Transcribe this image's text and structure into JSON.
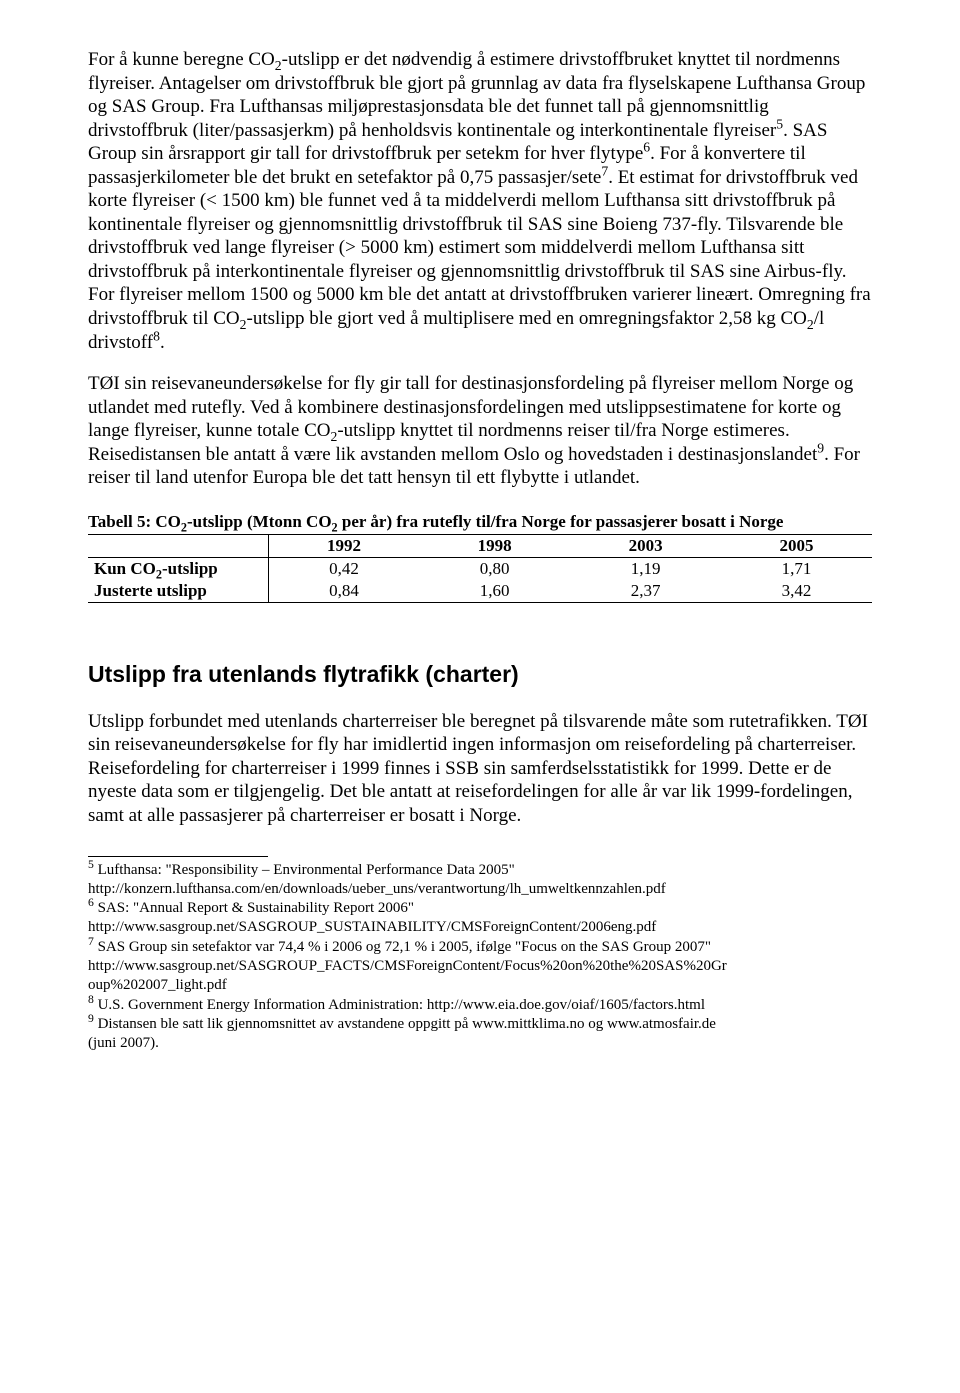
{
  "para1_html": "For å kunne beregne CO<span class=\"sub\">2</span>-utslipp er det nødvendig å estimere drivstoffbruket knyttet til nordmenns flyreiser. Antagelser om drivstoffbruk ble gjort på grunnlag av data fra flyselskapene Lufthansa Group og SAS Group. Fra Lufthansas miljøprestasjonsdata ble det funnet tall på gjennomsnittlig drivstoffbruk (liter/passasjerkm) på henholdsvis kontinentale og interkontinentale flyreiser<span class=\"sup\">5</span>. SAS Group sin årsrapport gir tall for drivstoffbruk per setekm for hver flytype<span class=\"sup\">6</span>. For å konvertere til passasjerkilometer ble det brukt en setefaktor på 0,75 passasjer/sete<span class=\"sup\">7</span>. Et estimat for drivstoffbruk ved korte flyreiser (&lt; 1500 km) ble funnet ved å ta middelverdi mellom Lufthansa sitt drivstoffbruk på kontinentale flyreiser og gjennomsnittlig drivstoffbruk til SAS sine Boieng 737-fly. Tilsvarende ble drivstoffbruk ved lange flyreiser (&gt; 5000 km) estimert som middelverdi mellom Lufthansa sitt drivstoffbruk på interkontinentale flyreiser og gjennomsnittlig drivstoffbruk til SAS sine Airbus-fly. For flyreiser mellom 1500 og 5000 km ble det antatt at drivstoffbruken varierer lineært. Omregning fra drivstoffbruk til CO<span class=\"sub\">2</span>-utslipp ble gjort ved å multiplisere med en omregningsfaktor 2,58 kg CO<span class=\"sub\">2</span>/l drivstoff<span class=\"sup\">8</span>.",
  "para2_html": "TØI sin reisevaneundersøkelse for fly gir tall for destinasjonsfordeling på flyreiser mellom Norge og utlandet med rutefly. Ved å kombinere destinasjonsfordelingen med utslippsestimatene for korte og lange flyreiser, kunne totale CO<span class=\"sub\">2</span>-utslipp knyttet til nordmenns reiser til/fra Norge estimeres. Reisedistansen ble antatt å være lik avstanden mellom Oslo og hovedstaden i destinasjonslandet<span class=\"sup\">9</span>. For reiser til land utenfor Europa ble det tatt hensyn til ett flybytte i utlandet.",
  "table": {
    "title_html": "Tabell 5: CO<span class=\"sub\">2</span>-utslipp (Mtonn CO<span class=\"sub\">2</span> per år) fra rutefly til/fra Norge for passasjerer bosatt i Norge",
    "years": [
      "1992",
      "1998",
      "2003",
      "2005"
    ],
    "rows": [
      {
        "label_html": "Kun CO<span class=\"sub\">2</span>-utslipp",
        "values": [
          "0,42",
          "0,80",
          "1,19",
          "1,71"
        ]
      },
      {
        "label_html": "Justerte utslipp",
        "values": [
          "0,84",
          "1,60",
          "2,37",
          "3,42"
        ]
      }
    ],
    "col_widths": [
      "23%",
      "19.25%",
      "19.25%",
      "19.25%",
      "19.25%"
    ]
  },
  "section_heading": "Utslipp fra utenlands flytrafikk (charter)",
  "para3": "Utslipp forbundet med utenlands charterreiser ble beregnet på tilsvarende måte som rutetrafikken. TØI sin reisevaneundersøkelse for fly har imidlertid ingen informasjon om reisefordeling på charterreiser. Reisefordeling for charterreiser i 1999 finnes i SSB sin samferdselsstatistikk for 1999. Dette er de nyeste data som er tilgjengelig. Det ble antatt at reisefordelingen for alle år var lik 1999-fordelingen, samt at alle passasjerer på charterreiser er bosatt i Norge.",
  "footnotes": [
    {
      "num": "5",
      "lines": [
        "Lufthansa: \"Responsibility – Environmental Performance Data 2005\"",
        "http://konzern.lufthansa.com/en/downloads/ueber_uns/verantwortung/lh_umweltkennzahlen.pdf"
      ]
    },
    {
      "num": "6",
      "lines": [
        "SAS: \"Annual Report & Sustainability Report 2006\"",
        "http://www.sasgroup.net/SASGROUP_SUSTAINABILITY/CMSForeignContent/2006eng.pdf"
      ]
    },
    {
      "num": "7",
      "lines": [
        "SAS Group sin setefaktor var 74,4 % i 2006 og 72,1 % i 2005, ifølge \"Focus on the SAS Group 2007\"",
        "http://www.sasgroup.net/SASGROUP_FACTS/CMSForeignContent/Focus%20on%20the%20SAS%20Gr",
        "oup%202007_light.pdf"
      ]
    },
    {
      "num": "8",
      "lines": [
        "U.S. Government Energy Information Administration: http://www.eia.doe.gov/oiaf/1605/factors.html"
      ]
    },
    {
      "num": "9",
      "lines": [
        "Distansen ble satt lik gjennomsnittet av avstandene oppgitt på www.mittklima.no og www.atmosfair.de",
        "(juni 2007)."
      ]
    }
  ]
}
